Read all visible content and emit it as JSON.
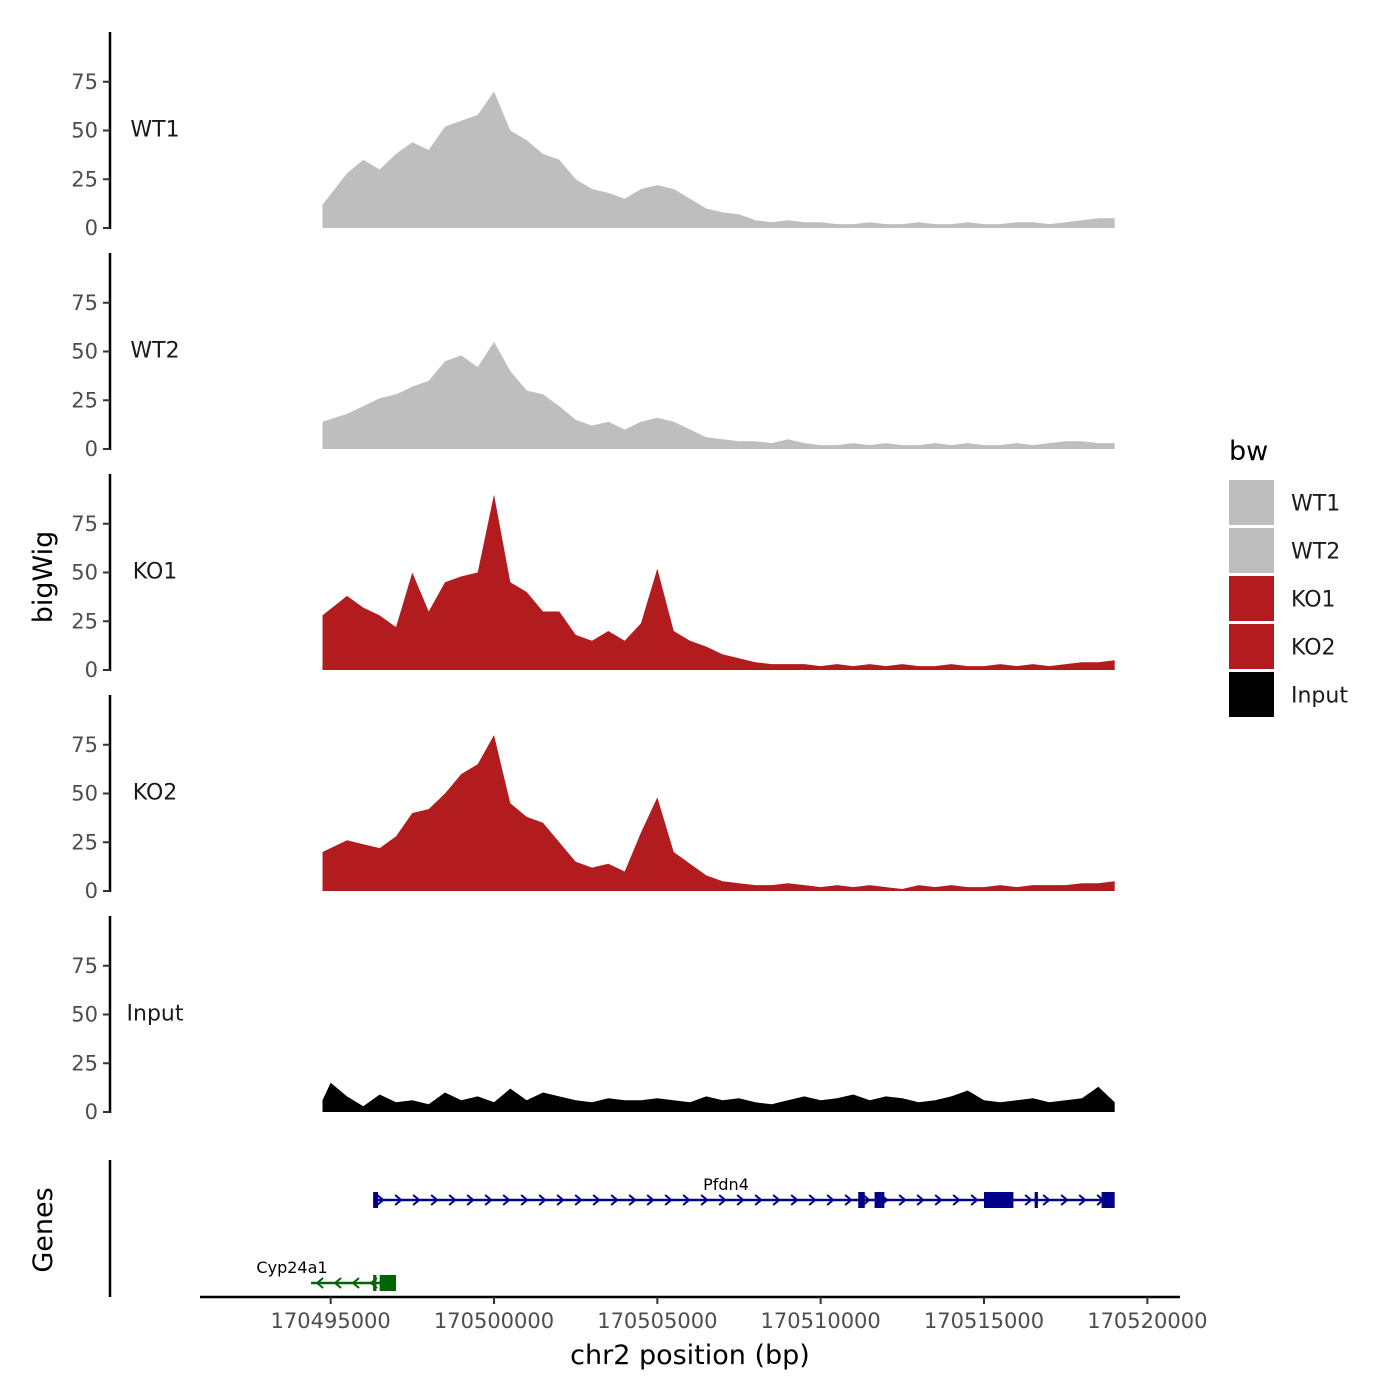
{
  "chart_data": {
    "type": "area",
    "xlabel": "chr2 position (bp)",
    "ylabel": "bigWig",
    "genes_label": "Genes",
    "xlim": [
      170491000,
      170521000
    ],
    "x_ticks": [
      170495000,
      170500000,
      170505000,
      170510000,
      170515000,
      170520000
    ],
    "x_tick_labels": [
      "170495000",
      "170500000",
      "170505000",
      "170510000",
      "170515000",
      "170520000"
    ],
    "ylim": [
      0,
      100
    ],
    "y_ticks": [
      0,
      25,
      50,
      75
    ],
    "y_tick_labels": [
      "0",
      "25",
      "50",
      "75"
    ],
    "legend": {
      "title": "bw",
      "entries": [
        {
          "label": "WT1",
          "color": "#bebebe"
        },
        {
          "label": "WT2",
          "color": "#bebebe"
        },
        {
          "label": "KO1",
          "color": "#b21c1f"
        },
        {
          "label": "KO2",
          "color": "#b21c1f"
        },
        {
          "label": "Input",
          "color": "#000000"
        }
      ]
    },
    "series": [
      {
        "name": "WT1",
        "color": "#bebebe",
        "x": [
          170494750,
          170495500,
          170496000,
          170496500,
          170497000,
          170497500,
          170498000,
          170498500,
          170499000,
          170499500,
          170500000,
          170500500,
          170501000,
          170501500,
          170502000,
          170502500,
          170503000,
          170503500,
          170504000,
          170504500,
          170505000,
          170505500,
          170506000,
          170506500,
          170507000,
          170507500,
          170508000,
          170508500,
          170509000,
          170509500,
          170510000,
          170510500,
          170511000,
          170511500,
          170512000,
          170512500,
          170513000,
          170513500,
          170514000,
          170514500,
          170515000,
          170515500,
          170516000,
          170516500,
          170517000,
          170517500,
          170518000,
          170518500,
          170519000
        ],
        "y": [
          12,
          28,
          35,
          30,
          38,
          44,
          40,
          52,
          55,
          58,
          70,
          50,
          45,
          38,
          35,
          25,
          20,
          18,
          15,
          20,
          22,
          20,
          15,
          10,
          8,
          7,
          4,
          3,
          4,
          3,
          3,
          2,
          2,
          3,
          2,
          2,
          3,
          2,
          2,
          3,
          2,
          2,
          3,
          3,
          2,
          3,
          4,
          5,
          5
        ]
      },
      {
        "name": "WT2",
        "color": "#bebebe",
        "x": [
          170494750,
          170495500,
          170496000,
          170496500,
          170497000,
          170497500,
          170498000,
          170498500,
          170499000,
          170499500,
          170500000,
          170500500,
          170501000,
          170501500,
          170502000,
          170502500,
          170503000,
          170503500,
          170504000,
          170504500,
          170505000,
          170505500,
          170506000,
          170506500,
          170507000,
          170507500,
          170508000,
          170508500,
          170509000,
          170509500,
          170510000,
          170510500,
          170511000,
          170511500,
          170512000,
          170512500,
          170513000,
          170513500,
          170514000,
          170514500,
          170515000,
          170515500,
          170516000,
          170516500,
          170517000,
          170517500,
          170518000,
          170518500,
          170519000
        ],
        "y": [
          14,
          18,
          22,
          26,
          28,
          32,
          35,
          45,
          48,
          42,
          55,
          40,
          30,
          28,
          22,
          15,
          12,
          14,
          10,
          14,
          16,
          14,
          10,
          6,
          5,
          4,
          4,
          3,
          5,
          3,
          2,
          2,
          3,
          2,
          3,
          2,
          2,
          3,
          2,
          3,
          2,
          2,
          3,
          2,
          3,
          4,
          4,
          3,
          3
        ]
      },
      {
        "name": "KO1",
        "color": "#b21c1f",
        "x": [
          170494750,
          170495500,
          170496000,
          170496500,
          170497000,
          170497500,
          170498000,
          170498500,
          170499000,
          170499500,
          170500000,
          170500500,
          170501000,
          170501500,
          170502000,
          170502500,
          170503000,
          170503500,
          170504000,
          170504500,
          170505000,
          170505500,
          170506000,
          170506500,
          170507000,
          170507500,
          170508000,
          170508500,
          170509000,
          170509500,
          170510000,
          170510500,
          170511000,
          170511500,
          170512000,
          170512500,
          170513000,
          170513500,
          170514000,
          170514500,
          170515000,
          170515500,
          170516000,
          170516500,
          170517000,
          170517500,
          170518000,
          170518500,
          170519000
        ],
        "y": [
          28,
          38,
          32,
          28,
          22,
          50,
          30,
          45,
          48,
          50,
          90,
          45,
          40,
          30,
          30,
          18,
          15,
          20,
          15,
          24,
          52,
          20,
          15,
          12,
          8,
          6,
          4,
          3,
          3,
          3,
          2,
          3,
          2,
          3,
          2,
          3,
          2,
          2,
          3,
          2,
          2,
          3,
          2,
          3,
          2,
          3,
          4,
          4,
          5
        ]
      },
      {
        "name": "KO2",
        "color": "#b21c1f",
        "x": [
          170494750,
          170495500,
          170496000,
          170496500,
          170497000,
          170497500,
          170498000,
          170498500,
          170499000,
          170499500,
          170500000,
          170500500,
          170501000,
          170501500,
          170502000,
          170502500,
          170503000,
          170503500,
          170504000,
          170504500,
          170505000,
          170505500,
          170506000,
          170506500,
          170507000,
          170507500,
          170508000,
          170508500,
          170509000,
          170509500,
          170510000,
          170510500,
          170511000,
          170511500,
          170512000,
          170512500,
          170513000,
          170513500,
          170514000,
          170514500,
          170515000,
          170515500,
          170516000,
          170516500,
          170517000,
          170517500,
          170518000,
          170518500,
          170519000
        ],
        "y": [
          20,
          26,
          24,
          22,
          28,
          40,
          42,
          50,
          60,
          65,
          80,
          45,
          38,
          35,
          25,
          15,
          12,
          14,
          10,
          30,
          48,
          20,
          14,
          8,
          5,
          4,
          3,
          3,
          4,
          3,
          2,
          3,
          2,
          3,
          2,
          1,
          3,
          2,
          3,
          2,
          2,
          3,
          2,
          3,
          3,
          3,
          4,
          4,
          5
        ]
      },
      {
        "name": "Input",
        "color": "#000000",
        "x": [
          170494750,
          170495000,
          170495500,
          170496000,
          170496500,
          170497000,
          170497500,
          170498000,
          170498500,
          170499000,
          170499500,
          170500000,
          170500500,
          170501000,
          170501500,
          170502000,
          170502500,
          170503000,
          170503500,
          170504000,
          170504500,
          170505000,
          170505500,
          170506000,
          170506500,
          170507000,
          170507500,
          170508000,
          170508500,
          170509000,
          170509500,
          170510000,
          170510500,
          170511000,
          170511500,
          170512000,
          170512500,
          170513000,
          170513500,
          170514000,
          170514500,
          170515000,
          170515500,
          170516000,
          170516500,
          170517000,
          170517500,
          170518000,
          170518500,
          170519000
        ],
        "y": [
          6,
          15,
          8,
          3,
          9,
          5,
          6,
          4,
          10,
          6,
          8,
          5,
          12,
          6,
          10,
          8,
          6,
          5,
          7,
          6,
          6,
          7,
          6,
          5,
          8,
          6,
          7,
          5,
          4,
          6,
          8,
          6,
          7,
          9,
          6,
          8,
          7,
          5,
          6,
          8,
          11,
          6,
          5,
          6,
          7,
          5,
          6,
          7,
          13,
          5
        ]
      }
    ],
    "genes": [
      {
        "name": "Pfdn4",
        "strand": "+",
        "color": "#00008b",
        "start": 170496300,
        "end": 170519000,
        "exons": [
          [
            170496300,
            170496450
          ],
          [
            170511150,
            170511350
          ],
          [
            170511650,
            170511950
          ],
          [
            170515000,
            170515900
          ],
          [
            170516550,
            170516650
          ],
          [
            170518600,
            170519000
          ]
        ]
      },
      {
        "name": "Cyp24a1",
        "strand": "-",
        "color": "#006400",
        "start": 170494400,
        "end": 170497000,
        "exons": [
          [
            170496300,
            170496400
          ],
          [
            170496500,
            170497000
          ]
        ]
      }
    ]
  }
}
